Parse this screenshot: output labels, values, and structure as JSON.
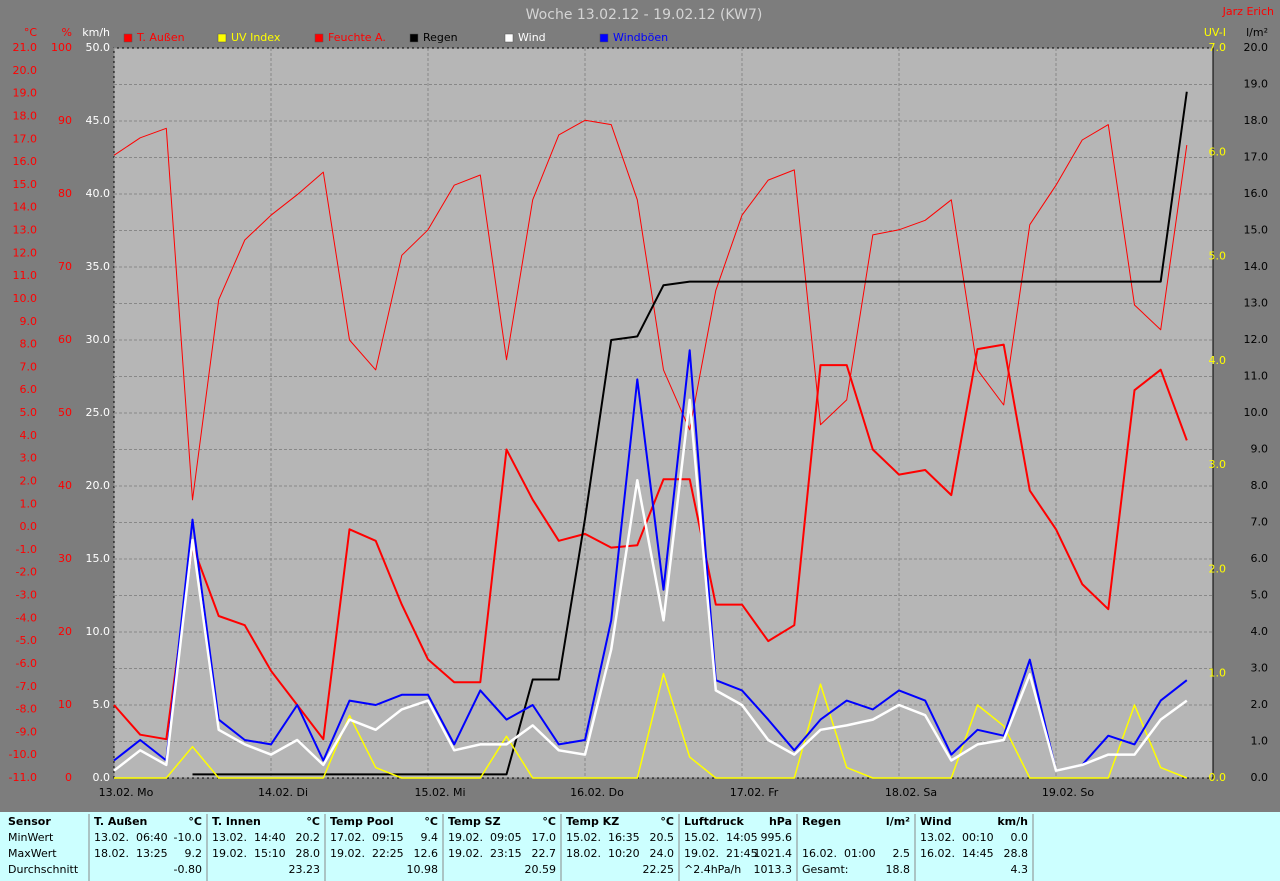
{
  "chart_data": {
    "type": "line",
    "title": "Woche 13.02.12 - 19.02.12 (KW7)",
    "author": "Jarz Erich",
    "xlim": [
      0,
      168
    ],
    "xticks": [
      {
        "value": 0,
        "label": "13.02. Mo"
      },
      {
        "value": 24,
        "label": "14.02. Di"
      },
      {
        "value": 48,
        "label": "15.02. Mi"
      },
      {
        "value": 72,
        "label": "16.02. Do"
      },
      {
        "value": 96,
        "label": "17.02. Fr"
      },
      {
        "value": 120,
        "label": "18.02. Sa"
      },
      {
        "value": 144,
        "label": "19.02. So"
      }
    ],
    "grid": "y5",
    "axes": {
      "y": {
        "label": "°C",
        "color": "#ff0000",
        "side": "left",
        "lim": [
          -11,
          21
        ],
        "ticks": [
          {
            "value": -11,
            "label": "-11.0"
          },
          {
            "value": -10,
            "label": "-10.0"
          },
          {
            "value": -9,
            "label": "-9.0"
          },
          {
            "value": -8,
            "label": "-8.0"
          },
          {
            "value": -7,
            "label": "-7.0"
          },
          {
            "value": -6,
            "label": "-6.0"
          },
          {
            "value": -5,
            "label": "-5.0"
          },
          {
            "value": -4,
            "label": "-4.0"
          },
          {
            "value": -3,
            "label": "-3.0"
          },
          {
            "value": -2,
            "label": "-2.0"
          },
          {
            "value": -1,
            "label": "-1.0"
          },
          {
            "value": 0,
            "label": "0.0"
          },
          {
            "value": 1,
            "label": "1.0"
          },
          {
            "value": 2,
            "label": "2.0"
          },
          {
            "value": 3,
            "label": "3.0"
          },
          {
            "value": 4,
            "label": "4.0"
          },
          {
            "value": 5,
            "label": "5.0"
          },
          {
            "value": 6,
            "label": "6.0"
          },
          {
            "value": 7,
            "label": "7.0"
          },
          {
            "value": 8,
            "label": "8.0"
          },
          {
            "value": 9,
            "label": "9.0"
          },
          {
            "value": 10,
            "label": "10.0"
          },
          {
            "value": 11,
            "label": "11.0"
          },
          {
            "value": 12,
            "label": "12.0"
          },
          {
            "value": 13,
            "label": "13.0"
          },
          {
            "value": 14,
            "label": "14.0"
          },
          {
            "value": 15,
            "label": "15.0"
          },
          {
            "value": 16,
            "label": "16.0"
          },
          {
            "value": 17,
            "label": "17.0"
          },
          {
            "value": 18,
            "label": "18.0"
          },
          {
            "value": 19,
            "label": "19.0"
          },
          {
            "value": 20,
            "label": "20.0"
          },
          {
            "value": 21,
            "label": "21.0"
          }
        ]
      },
      "y2": {
        "label": "%",
        "color": "#ff0000",
        "side": "left",
        "lim": [
          0,
          100
        ],
        "ticks": [
          0,
          10,
          20,
          30,
          40,
          50,
          60,
          70,
          80,
          90,
          100
        ]
      },
      "y3": {
        "label": "km/h",
        "color": "#ffffff",
        "side": "left",
        "lim": [
          0,
          50
        ],
        "ticks": [
          {
            "value": 0,
            "label": "0.0"
          },
          {
            "value": 5,
            "label": "5.0"
          },
          {
            "value": 10,
            "label": "10.0"
          },
          {
            "value": 15,
            "label": "15.0"
          },
          {
            "value": 20,
            "label": "20.0"
          },
          {
            "value": 25,
            "label": "25.0"
          },
          {
            "value": 30,
            "label": "30.0"
          },
          {
            "value": 35,
            "label": "35.0"
          },
          {
            "value": 40,
            "label": "40.0"
          },
          {
            "value": 45,
            "label": "45.0"
          },
          {
            "value": 50,
            "label": "50.0"
          }
        ]
      },
      "y4": {
        "label": "UV-I",
        "color": "#ffff00",
        "side": "right",
        "lim": [
          0,
          7
        ],
        "ticks": [
          {
            "value": 0,
            "label": "0.0"
          },
          {
            "value": 1,
            "label": "1.0"
          },
          {
            "value": 2,
            "label": "2.0"
          },
          {
            "value": 3,
            "label": "3.0"
          },
          {
            "value": 4,
            "label": "4.0"
          },
          {
            "value": 5,
            "label": "5.0"
          },
          {
            "value": 6,
            "label": "6.0"
          },
          {
            "value": 7,
            "label": "7.0"
          }
        ]
      },
      "y5": {
        "label": "l/m²",
        "color": "#000000",
        "side": "right",
        "lim": [
          0,
          20
        ],
        "ticks": [
          {
            "value": 0,
            "label": "0.0"
          },
          {
            "value": 1,
            "label": "1.0"
          },
          {
            "value": 2,
            "label": "2.0"
          },
          {
            "value": 3,
            "label": "3.0"
          },
          {
            "value": 4,
            "label": "4.0"
          },
          {
            "value": 5,
            "label": "5.0"
          },
          {
            "value": 6,
            "label": "6.0"
          },
          {
            "value": 7,
            "label": "7.0"
          },
          {
            "value": 8,
            "label": "8.0"
          },
          {
            "value": 9,
            "label": "9.0"
          },
          {
            "value": 10,
            "label": "10.0"
          },
          {
            "value": 11,
            "label": "11.0"
          },
          {
            "value": 12,
            "label": "12.0"
          },
          {
            "value": 13,
            "label": "13.0"
          },
          {
            "value": 14,
            "label": "14.0"
          },
          {
            "value": 15,
            "label": "15.0"
          },
          {
            "value": 16,
            "label": "16.0"
          },
          {
            "value": 17,
            "label": "17.0"
          },
          {
            "value": 18,
            "label": "18.0"
          },
          {
            "value": 19,
            "label": "19.0"
          },
          {
            "value": 20,
            "label": "20.0"
          }
        ]
      }
    },
    "x": [
      0,
      4,
      8,
      12,
      16,
      20,
      24,
      28,
      32,
      36,
      40,
      44,
      48,
      52,
      56,
      60,
      64,
      68,
      72,
      76,
      80,
      84,
      88,
      92,
      96,
      100,
      104,
      108,
      112,
      116,
      120,
      124,
      128,
      132,
      136,
      140,
      144,
      148,
      152,
      156,
      160,
      164
    ],
    "series": [
      {
        "name": "T. Außen",
        "color": "#ff0000",
        "axis": "y",
        "values": [
          -7.8,
          -9.1,
          -9.3,
          -0.8,
          -3.9,
          -4.3,
          -6.3,
          -7.8,
          -9.3,
          -0.1,
          -0.6,
          -3.4,
          -5.8,
          -6.8,
          -6.8,
          3.4,
          1.2,
          -0.6,
          -0.3,
          -0.9,
          -0.8,
          2.1,
          2.1,
          -3.4,
          -3.4,
          -5.0,
          -4.3,
          7.1,
          7.1,
          3.4,
          2.3,
          2.5,
          1.4,
          7.8,
          8.0,
          1.6,
          -0.1,
          -2.5,
          -3.6,
          6.0,
          6.9,
          3.8
        ]
      },
      {
        "name": "UV Index",
        "color": "#ffff00",
        "axis": "y4",
        "values": [
          0,
          0,
          0,
          0.3,
          0,
          0,
          0,
          0,
          0,
          0.6,
          0.1,
          0,
          0,
          0,
          0,
          0.4,
          0,
          0,
          0,
          0,
          0,
          1.0,
          0.2,
          0,
          0,
          0,
          0,
          0.9,
          0.1,
          0,
          0,
          0,
          0,
          0.7,
          0.5,
          0,
          0,
          0,
          0,
          0.7,
          0.1,
          0
        ]
      },
      {
        "name": "Feuchte A.",
        "color": "#ff0000",
        "axis": "y2",
        "values": [
          85.3,
          87.7,
          89.0,
          38.1,
          65.5,
          73.7,
          77.1,
          79.9,
          83.0,
          60.0,
          55.9,
          71.6,
          75.1,
          81.2,
          82.6,
          57.3,
          79.2,
          88.1,
          90.1,
          89.5,
          79.2,
          55.9,
          47.7,
          66.8,
          77.1,
          81.9,
          83.3,
          48.4,
          51.8,
          74.4,
          75.1,
          76.4,
          79.2,
          55.9,
          51.1,
          75.8,
          81.2,
          87.4,
          89.5,
          64.8,
          61.4,
          86.7
        ]
      },
      {
        "name": "Regen",
        "color": "#000000",
        "axis": "y5",
        "values": [
          null,
          null,
          null,
          0.1,
          0.1,
          0.1,
          0.1,
          0.1,
          0.1,
          0.1,
          0.1,
          0.1,
          0.1,
          0.1,
          0.1,
          0.1,
          2.7,
          2.7,
          7.1,
          12.0,
          12.1,
          13.5,
          13.6,
          13.6,
          13.6,
          13.6,
          13.6,
          13.6,
          13.6,
          13.6,
          13.6,
          13.6,
          13.6,
          13.6,
          13.6,
          13.6,
          13.6,
          13.6,
          13.6,
          13.6,
          13.6,
          18.8
        ]
      },
      {
        "name": "Wind",
        "color": "#ffffff",
        "axis": "y3",
        "values": [
          0.5,
          1.9,
          0.9,
          16.3,
          3.3,
          2.3,
          1.6,
          2.6,
          0.9,
          4.0,
          3.3,
          4.7,
          5.3,
          1.9,
          2.3,
          2.3,
          3.6,
          1.9,
          1.6,
          8.8,
          20.4,
          10.8,
          25.9,
          6.0,
          5.0,
          2.6,
          1.6,
          3.3,
          3.6,
          4.0,
          5.0,
          4.3,
          1.2,
          2.3,
          2.6,
          7.1,
          0.5,
          0.9,
          1.6,
          1.6,
          4.0,
          5.3
        ]
      },
      {
        "name": "Windböen",
        "color": "#0000ff",
        "axis": "y3",
        "values": [
          1.2,
          2.6,
          1.2,
          17.7,
          4.0,
          2.6,
          2.3,
          5.0,
          1.2,
          5.3,
          5.0,
          5.7,
          5.7,
          2.3,
          6.0,
          4.0,
          5.0,
          2.3,
          2.6,
          10.8,
          27.3,
          12.9,
          29.3,
          6.7,
          6.0,
          4.0,
          1.9,
          4.0,
          5.3,
          4.7,
          6.0,
          5.3,
          1.6,
          3.3,
          2.9,
          8.1,
          0.5,
          0.9,
          2.9,
          2.3,
          5.3,
          6.7
        ]
      }
    ]
  },
  "table": {
    "row_labels": [
      "Sensor",
      "MinWert",
      "MaxWert",
      "Durchschnitt"
    ],
    "sensors": [
      {
        "name": "T. Außen",
        "unit": "°C",
        "min": {
          "time": "13.02.  06:40",
          "value": "-10.0"
        },
        "max": {
          "time": "18.02.  13:25",
          "value": "9.2"
        },
        "avg": {
          "value": "-0.80"
        }
      },
      {
        "name": "T. Innen",
        "unit": "°C",
        "min": {
          "time": "13.02.  14:40",
          "value": "20.2"
        },
        "max": {
          "time": "19.02.  15:10",
          "value": "28.0"
        },
        "avg": {
          "value": "23.23"
        }
      },
      {
        "name": "Temp Pool",
        "unit": "°C",
        "min": {
          "time": "17.02.  09:15",
          "value": "9.4"
        },
        "max": {
          "time": "19.02.  22:25",
          "value": "12.6"
        },
        "avg": {
          "value": "10.98"
        }
      },
      {
        "name": "Temp SZ",
        "unit": "°C",
        "min": {
          "time": "19.02.  09:05",
          "value": "17.0"
        },
        "max": {
          "time": "19.02.  23:15",
          "value": "22.7"
        },
        "avg": {
          "value": "20.59"
        }
      },
      {
        "name": "Temp KZ",
        "unit": "°C",
        "min": {
          "time": "15.02.  16:35",
          "value": "20.5"
        },
        "max": {
          "time": "18.02.  10:20",
          "value": "24.0"
        },
        "avg": {
          "value": "22.25"
        }
      },
      {
        "name": "Luftdruck",
        "unit": "hPa",
        "min": {
          "time": "15.02.  14:05",
          "value": "995.6"
        },
        "max": {
          "time": "19.02.  21:45",
          "value": "1021.4"
        },
        "avg": {
          "label": "^2.4hPa/h",
          "value": "1013.3"
        }
      },
      {
        "name": "Regen",
        "unit": "l/m²",
        "max": {
          "time": "16.02.  01:00",
          "value": "2.5"
        },
        "avg": {
          "label": "Gesamt:",
          "value": "18.8"
        }
      },
      {
        "name": "Wind",
        "unit": "km/h",
        "min": {
          "time": "13.02.  00:10",
          "value": "0.0"
        },
        "max": {
          "time": "16.02.  14:45",
          "value": "28.8"
        },
        "avg": {
          "value": "4.3"
        }
      }
    ]
  }
}
